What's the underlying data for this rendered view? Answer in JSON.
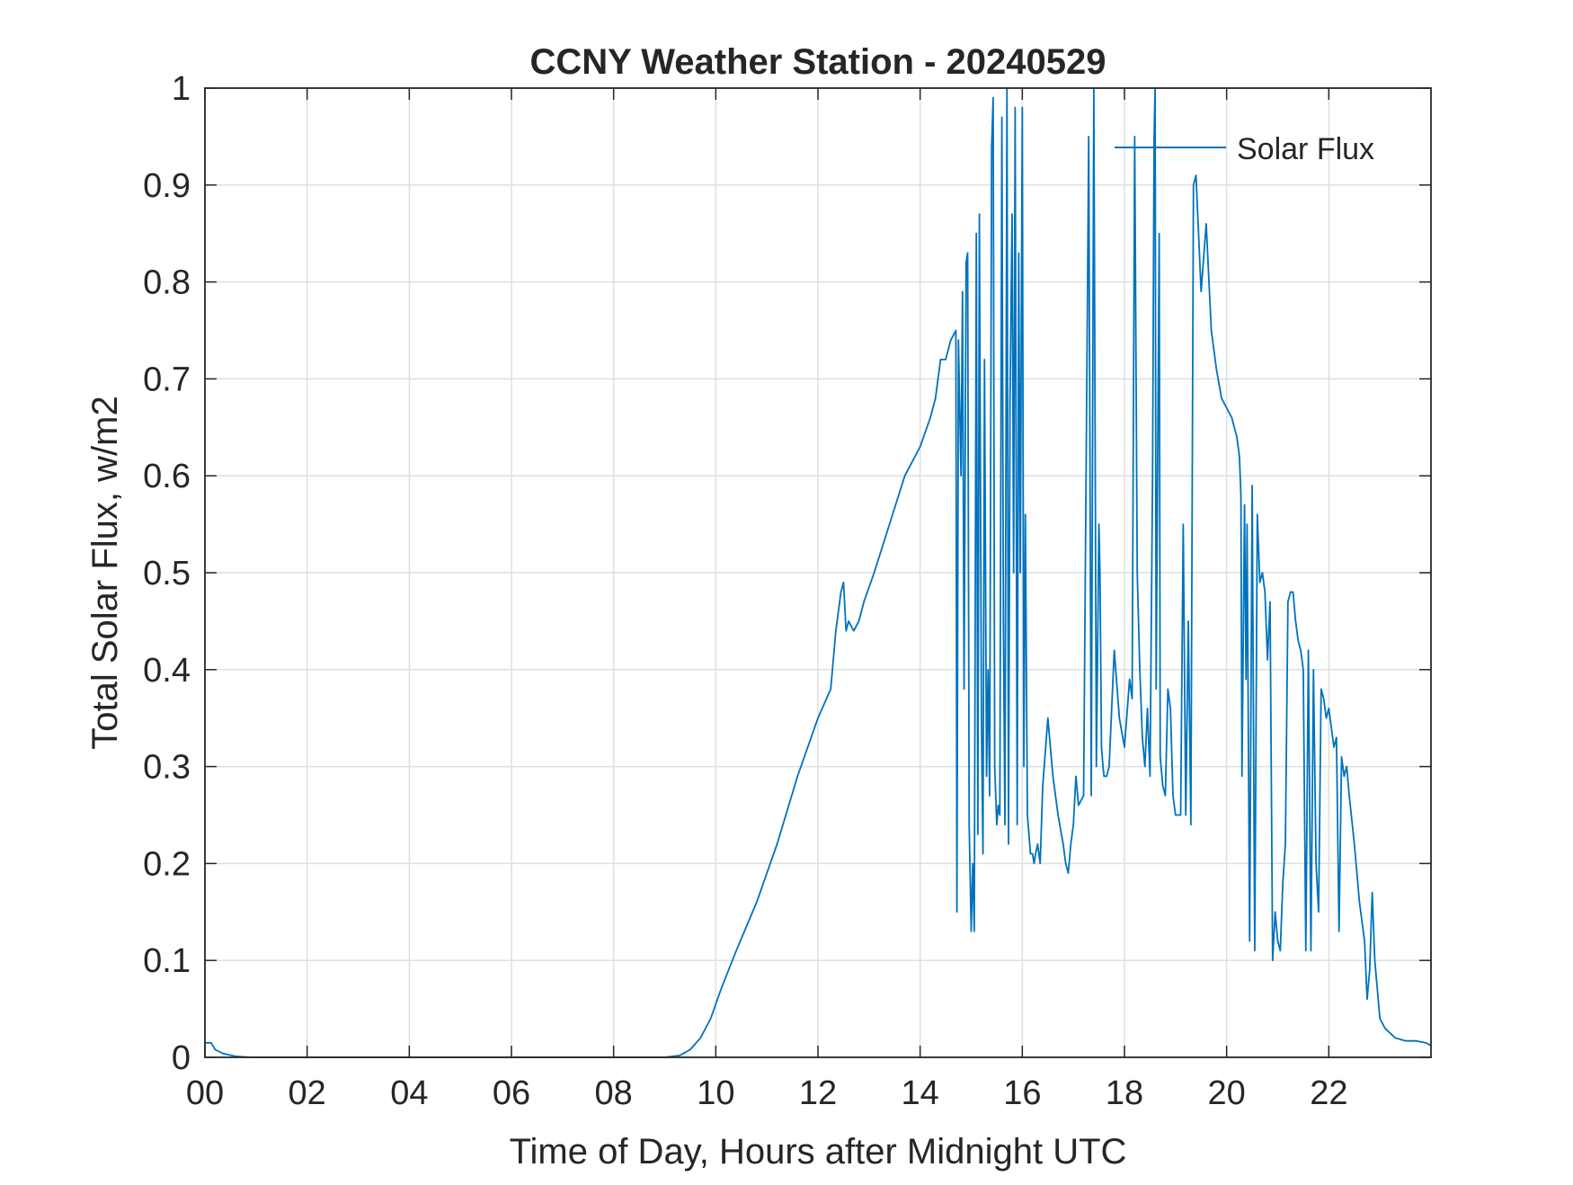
{
  "chart_data": {
    "type": "line",
    "title": "CCNY Weather Station - 20240529",
    "xlabel": "Time of Day, Hours after Midnight UTC",
    "ylabel": "Total Solar Flux, w/m2",
    "xlim": [
      0,
      24
    ],
    "ylim": [
      0,
      1
    ],
    "xticks": [
      0,
      2,
      4,
      6,
      8,
      10,
      12,
      14,
      16,
      18,
      20,
      22
    ],
    "xtick_labels": [
      "00",
      "02",
      "04",
      "06",
      "08",
      "10",
      "12",
      "14",
      "16",
      "18",
      "20",
      "22"
    ],
    "yticks": [
      0,
      0.1,
      0.2,
      0.3,
      0.4,
      0.5,
      0.6,
      0.7,
      0.8,
      0.9,
      1
    ],
    "ytick_labels": [
      "0",
      "0.1",
      "0.2",
      "0.3",
      "0.4",
      "0.5",
      "0.6",
      "0.7",
      "0.8",
      "0.9",
      "1"
    ],
    "grid": true,
    "legend_position": "top-right",
    "colors": {
      "series": "#0072bd",
      "axes": "#262626",
      "grid": "#dfdfdf"
    },
    "series": [
      {
        "name": "Solar Flux",
        "x": [
          0,
          0.12,
          0.2,
          0.35,
          0.6,
          0.9,
          1.2,
          2,
          3,
          4,
          5,
          6,
          7,
          8,
          9.0,
          9.3,
          9.5,
          9.7,
          9.9,
          10.1,
          10.4,
          10.8,
          11.2,
          11.6,
          12.0,
          12.25,
          12.35,
          12.45,
          12.5,
          12.55,
          12.6,
          12.7,
          12.8,
          12.9,
          13.1,
          13.4,
          13.7,
          14.0,
          14.2,
          14.3,
          14.35,
          14.4,
          14.5,
          14.6,
          14.7,
          14.72,
          14.75,
          14.8,
          14.83,
          14.86,
          14.9,
          14.93,
          14.96,
          15.0,
          15.03,
          15.06,
          15.1,
          15.13,
          15.16,
          15.2,
          15.23,
          15.26,
          15.3,
          15.33,
          15.36,
          15.4,
          15.43,
          15.46,
          15.5,
          15.53,
          15.56,
          15.6,
          15.63,
          15.66,
          15.7,
          15.73,
          15.76,
          15.8,
          15.83,
          15.86,
          15.9,
          15.93,
          15.96,
          16.0,
          16.03,
          16.06,
          16.1,
          16.13,
          16.16,
          16.2,
          16.23,
          16.26,
          16.3,
          16.35,
          16.4,
          16.5,
          16.6,
          16.7,
          16.8,
          16.85,
          16.9,
          16.95,
          17.0,
          17.05,
          17.1,
          17.2,
          17.3,
          17.35,
          17.4,
          17.45,
          17.5,
          17.52,
          17.55,
          17.58,
          17.6,
          17.62,
          17.65,
          17.7,
          17.8,
          17.9,
          18.0,
          18.1,
          18.15,
          18.2,
          18.25,
          18.3,
          18.35,
          18.4,
          18.45,
          18.5,
          18.55,
          18.58,
          18.6,
          18.62,
          18.65,
          18.68,
          18.7,
          18.75,
          18.8,
          18.85,
          18.9,
          18.95,
          19.0,
          19.05,
          19.1,
          19.15,
          19.2,
          19.25,
          19.3,
          19.35,
          19.4,
          19.45,
          19.5,
          19.6,
          19.7,
          19.8,
          19.9,
          20.0,
          20.1,
          20.2,
          20.25,
          20.28,
          20.3,
          20.35,
          20.38,
          20.4,
          20.45,
          20.5,
          20.55,
          20.6,
          20.65,
          20.7,
          20.75,
          20.8,
          20.85,
          20.9,
          20.95,
          21.0,
          21.05,
          21.1,
          21.15,
          21.2,
          21.25,
          21.3,
          21.35,
          21.4,
          21.45,
          21.5,
          21.55,
          21.6,
          21.65,
          21.7,
          21.75,
          21.8,
          21.85,
          21.9,
          21.95,
          22.0,
          22.05,
          22.1,
          22.15,
          22.2,
          22.25,
          22.3,
          22.35,
          22.4,
          22.5,
          22.6,
          22.7,
          22.75,
          22.8,
          22.85,
          22.9,
          23.0,
          23.1,
          23.2,
          23.3,
          23.5,
          23.7,
          23.9,
          24.0
        ],
        "y": [
          0.015,
          0.015,
          0.008,
          0.004,
          0.001,
          0.0,
          0.0,
          0.0,
          0.0,
          0.0,
          0.0,
          0.0,
          0.0,
          0.0,
          0.0,
          0.002,
          0.008,
          0.02,
          0.04,
          0.07,
          0.11,
          0.16,
          0.22,
          0.29,
          0.35,
          0.38,
          0.44,
          0.48,
          0.49,
          0.44,
          0.45,
          0.44,
          0.45,
          0.47,
          0.5,
          0.55,
          0.6,
          0.63,
          0.66,
          0.68,
          0.7,
          0.72,
          0.72,
          0.74,
          0.75,
          0.15,
          0.74,
          0.6,
          0.79,
          0.38,
          0.82,
          0.83,
          0.24,
          0.13,
          0.2,
          0.13,
          0.85,
          0.23,
          0.87,
          0.35,
          0.21,
          0.72,
          0.29,
          0.4,
          0.27,
          0.94,
          0.99,
          0.3,
          0.24,
          0.26,
          0.25,
          0.97,
          0.45,
          0.24,
          1.0,
          0.22,
          0.68,
          0.87,
          0.5,
          0.98,
          0.24,
          0.83,
          0.5,
          0.98,
          0.3,
          0.56,
          0.25,
          0.23,
          0.21,
          0.21,
          0.2,
          0.21,
          0.22,
          0.2,
          0.28,
          0.35,
          0.29,
          0.25,
          0.22,
          0.2,
          0.19,
          0.22,
          0.24,
          0.29,
          0.26,
          0.27,
          0.95,
          0.27,
          1.0,
          0.3,
          0.55,
          0.5,
          0.32,
          0.3,
          0.29,
          0.29,
          0.29,
          0.3,
          0.42,
          0.35,
          0.32,
          0.39,
          0.37,
          0.95,
          0.5,
          0.4,
          0.33,
          0.3,
          0.36,
          0.29,
          0.6,
          0.95,
          1.0,
          0.38,
          0.62,
          0.85,
          0.31,
          0.28,
          0.27,
          0.38,
          0.36,
          0.27,
          0.25,
          0.25,
          0.25,
          0.55,
          0.25,
          0.45,
          0.24,
          0.9,
          0.91,
          0.85,
          0.79,
          0.86,
          0.75,
          0.71,
          0.68,
          0.67,
          0.66,
          0.64,
          0.62,
          0.58,
          0.29,
          0.57,
          0.39,
          0.55,
          0.12,
          0.59,
          0.11,
          0.56,
          0.49,
          0.5,
          0.48,
          0.41,
          0.47,
          0.1,
          0.15,
          0.12,
          0.11,
          0.18,
          0.22,
          0.47,
          0.48,
          0.48,
          0.45,
          0.43,
          0.42,
          0.4,
          0.11,
          0.42,
          0.11,
          0.4,
          0.2,
          0.15,
          0.38,
          0.37,
          0.35,
          0.36,
          0.34,
          0.32,
          0.33,
          0.13,
          0.31,
          0.29,
          0.3,
          0.27,
          0.22,
          0.16,
          0.12,
          0.06,
          0.09,
          0.17,
          0.1,
          0.04,
          0.03,
          0.025,
          0.02,
          0.017,
          0.017,
          0.015,
          0.012
        ]
      }
    ]
  }
}
